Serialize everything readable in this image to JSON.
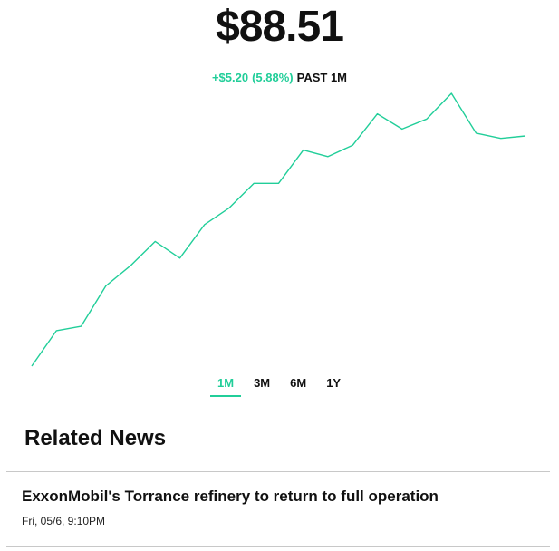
{
  "quote": {
    "price": "$88.51",
    "change_amount": "+$5.20",
    "change_percent": "(5.88%)",
    "period_label": "PAST 1M",
    "accent_color": "#21ce99"
  },
  "chart_data": {
    "type": "line",
    "series": [
      {
        "values": [
          0.0,
          0.13,
          0.146,
          0.294,
          0.368,
          0.457,
          0.396,
          0.519,
          0.58,
          0.67,
          0.67,
          0.792,
          0.768,
          0.81,
          0.925,
          0.869,
          0.906,
          1.0,
          0.854,
          0.835,
          0.844
        ]
      }
    ],
    "note_units": "",
    "grid": false,
    "axes": false
  },
  "range_selector": {
    "options": [
      "1M",
      "3M",
      "6M",
      "1Y"
    ],
    "selected": "1M"
  },
  "news": {
    "title": "Related News",
    "items": [
      {
        "headline": "ExxonMobil's Torrance refinery to return to full operation",
        "time": "Fri, 05/6, 9:10PM"
      }
    ]
  }
}
